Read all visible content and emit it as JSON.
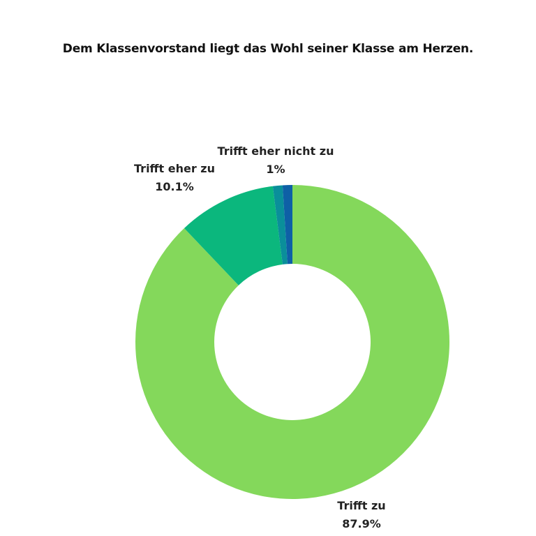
{
  "chart_data": {
    "type": "pie",
    "title": "Dem Klassenvorstand liegt das Wohl seiner Klasse am Herzen.",
    "slices": [
      {
        "label": "Trifft zu",
        "value": 87.9,
        "value_label": "87.9%",
        "color": "#84d85b"
      },
      {
        "label": "Trifft eher zu",
        "value": 10.1,
        "value_label": "10.1%",
        "color": "#0bb77d"
      },
      {
        "label": "Trifft eher nicht zu",
        "value": 1,
        "value_label": "1%",
        "color": "#0a8f9a"
      },
      {
        "label": "",
        "value": 1,
        "value_label": "",
        "color": "#0e60a6"
      }
    ],
    "donut": true,
    "legend": "none"
  }
}
